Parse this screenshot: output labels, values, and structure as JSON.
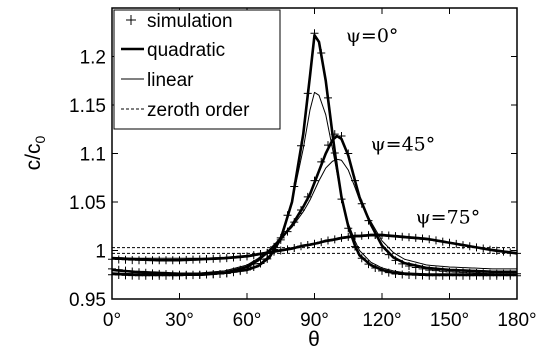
{
  "chart_data": {
    "type": "line",
    "xlabel": "θ",
    "ylabel_main": "c/c",
    "ylabel_sub": "0",
    "xlim": [
      0,
      180
    ],
    "ylim": [
      0.95,
      1.25
    ],
    "x_ticks": [
      0,
      30,
      60,
      90,
      120,
      150,
      180
    ],
    "x_tick_labels": [
      "0°",
      "30°",
      "60°",
      "90°",
      "120°",
      "150°",
      "180°"
    ],
    "y_ticks": [
      0.95,
      1.0,
      1.05,
      1.1,
      1.15,
      1.2
    ],
    "y_tick_labels": [
      "0.95",
      "1",
      "1.05",
      "1.1",
      "1.15",
      "1.2"
    ],
    "grid": false,
    "legend_position": "top-left",
    "legend": [
      {
        "label": "simulation",
        "style": "plus"
      },
      {
        "label": "quadratic",
        "style": "thick"
      },
      {
        "label": "linear",
        "style": "thin"
      },
      {
        "label": "zeroth order",
        "style": "dashed"
      }
    ],
    "annotations": [
      {
        "text": "ψ=0°",
        "x": 104,
        "y": 1.215
      },
      {
        "text": "ψ=45°",
        "x": 115,
        "y": 1.103
      },
      {
        "text": "ψ=75°",
        "x": 135,
        "y": 1.028
      }
    ],
    "x": [
      0,
      10,
      20,
      30,
      40,
      50,
      60,
      65,
      70,
      75,
      80,
      85,
      88,
      90,
      92,
      95,
      98,
      100,
      102,
      105,
      108,
      110,
      115,
      120,
      125,
      130,
      140,
      150,
      160,
      170,
      180
    ],
    "series": [
      {
        "name": "ψ=0° quadratic",
        "style": "thick",
        "values": [
          0.98,
          0.978,
          0.977,
          0.976,
          0.976,
          0.977,
          0.98,
          0.984,
          0.993,
          1.012,
          1.05,
          1.12,
          1.18,
          1.222,
          1.215,
          1.175,
          1.12,
          1.085,
          1.055,
          1.025,
          1.005,
          0.995,
          0.985,
          0.98,
          0.977,
          0.976,
          0.975,
          0.975,
          0.975,
          0.975,
          0.975
        ]
      },
      {
        "name": "ψ=0° linear",
        "style": "thin",
        "values": [
          0.98,
          0.978,
          0.977,
          0.976,
          0.976,
          0.977,
          0.98,
          0.985,
          0.995,
          1.015,
          1.05,
          1.105,
          1.145,
          1.163,
          1.16,
          1.14,
          1.105,
          1.08,
          1.055,
          1.028,
          1.01,
          1.0,
          0.988,
          0.982,
          0.979,
          0.977,
          0.976,
          0.976,
          0.976,
          0.976,
          0.976
        ]
      },
      {
        "name": "ψ=0° simulation",
        "style": "plus",
        "values": [
          0.981,
          0.978,
          0.976,
          0.975,
          0.975,
          0.976,
          0.98,
          0.985,
          0.993,
          1.013,
          1.052,
          1.122,
          1.182,
          1.224,
          1.217,
          1.177,
          1.118,
          1.083,
          1.053,
          1.023,
          1.004,
          0.994,
          0.984,
          0.979,
          0.976,
          0.975,
          0.974,
          0.974,
          0.974,
          0.974,
          0.974
        ]
      },
      {
        "name": "ψ=45° quadratic",
        "style": "thick",
        "values": [
          0.976,
          0.975,
          0.975,
          0.975,
          0.975,
          0.977,
          0.983,
          0.99,
          1.0,
          1.012,
          1.026,
          1.045,
          1.058,
          1.07,
          1.082,
          1.1,
          1.114,
          1.118,
          1.115,
          1.098,
          1.072,
          1.055,
          1.027,
          1.005,
          0.993,
          0.987,
          0.982,
          0.98,
          0.979,
          0.978,
          0.978
        ]
      },
      {
        "name": "ψ=45° linear",
        "style": "thin",
        "values": [
          0.977,
          0.976,
          0.976,
          0.976,
          0.977,
          0.979,
          0.985,
          0.992,
          1.001,
          1.012,
          1.024,
          1.04,
          1.052,
          1.062,
          1.072,
          1.085,
          1.092,
          1.094,
          1.093,
          1.083,
          1.065,
          1.052,
          1.03,
          1.01,
          0.998,
          0.991,
          0.985,
          0.983,
          0.982,
          0.981,
          0.981
        ]
      },
      {
        "name": "ψ=45° simulation",
        "style": "plus",
        "values": [
          0.975,
          0.974,
          0.974,
          0.974,
          0.975,
          0.976,
          0.982,
          0.989,
          0.999,
          1.011,
          1.025,
          1.046,
          1.06,
          1.072,
          1.085,
          1.104,
          1.118,
          1.122,
          1.118,
          1.1,
          1.072,
          1.054,
          1.025,
          1.003,
          0.991,
          0.985,
          0.98,
          0.978,
          0.977,
          0.976,
          0.976
        ]
      },
      {
        "name": "ψ=75° quadratic",
        "style": "thick",
        "values": [
          0.992,
          0.991,
          0.99,
          0.99,
          0.991,
          0.992,
          0.994,
          0.996,
          0.998,
          1.0,
          1.002,
          1.005,
          1.006,
          1.007,
          1.008,
          1.01,
          1.011,
          1.012,
          1.013,
          1.014,
          1.015,
          1.015,
          1.016,
          1.016,
          1.015,
          1.014,
          1.012,
          1.008,
          1.004,
          1.0,
          0.997
        ]
      },
      {
        "name": "ψ=75° linear",
        "style": "thin",
        "values": [
          0.993,
          0.992,
          0.992,
          0.992,
          0.992,
          0.993,
          0.995,
          0.997,
          0.999,
          1.001,
          1.003,
          1.005,
          1.006,
          1.007,
          1.008,
          1.009,
          1.01,
          1.011,
          1.012,
          1.013,
          1.014,
          1.014,
          1.015,
          1.015,
          1.014,
          1.013,
          1.011,
          1.008,
          1.004,
          1.001,
          0.998
        ]
      },
      {
        "name": "ψ=75° simulation",
        "style": "plus",
        "values": [
          0.991,
          0.99,
          0.99,
          0.99,
          0.991,
          0.992,
          0.994,
          0.996,
          0.998,
          1.0,
          1.002,
          1.005,
          1.006,
          1.007,
          1.008,
          1.01,
          1.011,
          1.012,
          1.013,
          1.014,
          1.015,
          1.015,
          1.016,
          1.016,
          1.015,
          1.014,
          1.012,
          1.008,
          1.004,
          1.0,
          0.997
        ]
      },
      {
        "name": "zeroth order (ψ=0°,45°)",
        "style": "dashed",
        "values": [
          0.997,
          0.997,
          0.997,
          0.997,
          0.997,
          0.997,
          0.997,
          0.997,
          0.997,
          0.997,
          0.997,
          0.997,
          0.997,
          0.997,
          0.997,
          0.997,
          0.997,
          0.997,
          0.997,
          0.997,
          0.997,
          0.997,
          0.997,
          0.997,
          0.997,
          0.997,
          0.997,
          0.997,
          0.997,
          0.997,
          0.997
        ]
      },
      {
        "name": "zeroth order (ψ=75°)",
        "style": "dashed",
        "values": [
          1.003,
          1.003,
          1.003,
          1.003,
          1.003,
          1.003,
          1.003,
          1.003,
          1.003,
          1.003,
          1.003,
          1.003,
          1.003,
          1.003,
          1.003,
          1.003,
          1.003,
          1.003,
          1.003,
          1.003,
          1.003,
          1.003,
          1.003,
          1.003,
          1.003,
          1.003,
          1.003,
          1.003,
          1.003,
          1.003,
          1.003
        ]
      }
    ]
  }
}
